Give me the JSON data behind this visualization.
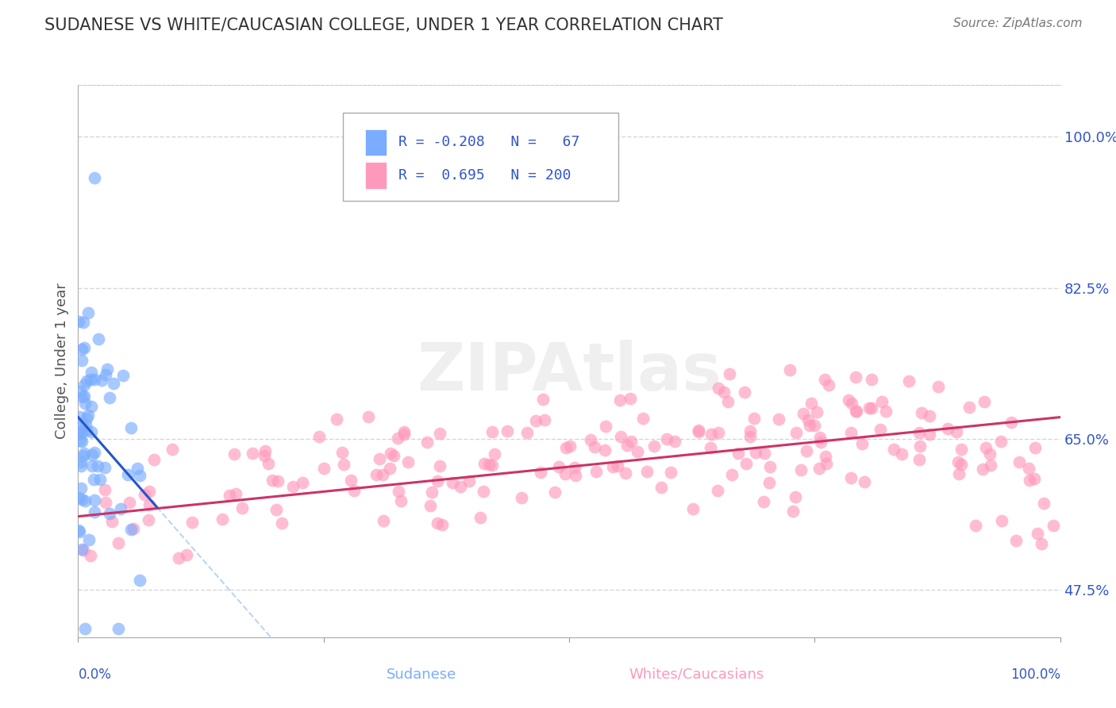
{
  "title": "SUDANESE VS WHITE/CAUCASIAN COLLEGE, UNDER 1 YEAR CORRELATION CHART",
  "source": "Source: ZipAtlas.com",
  "ylabel": "College, Under 1 year",
  "xlim": [
    0.0,
    100.0
  ],
  "ylim": [
    42.0,
    106.0
  ],
  "yticks": [
    47.5,
    65.0,
    82.5,
    100.0
  ],
  "ytick_labels": [
    "47.5%",
    "65.0%",
    "82.5%",
    "100.0%"
  ],
  "watermark": "ZIPAtlas",
  "series": [
    {
      "name": "Sudanese",
      "color": "#7aacff",
      "R": -0.208,
      "N": 67
    },
    {
      "name": "Whites/Caucasians",
      "color": "#ff99bb",
      "R": 0.695,
      "N": 200
    }
  ],
  "blue_line_color": "#2255cc",
  "pink_line_color": "#cc3366",
  "dashed_line_color": "#aaccee",
  "legend_R_color": "#3355cc",
  "legend_N_color": "#3399ff",
  "background_color": "#ffffff",
  "grid_color": "#cccccc",
  "title_color": "#333333",
  "source_color": "#777777",
  "axis_label_color": "#3355cc",
  "ytick_color": "#3355cc"
}
